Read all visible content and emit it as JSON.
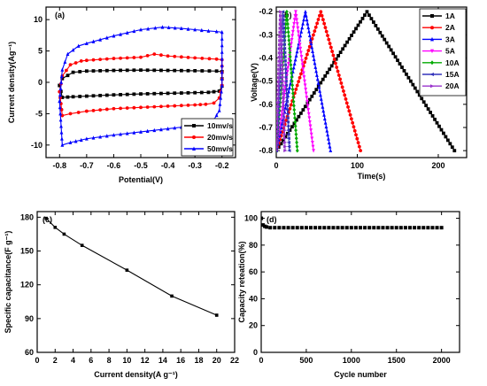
{
  "chart_data": [
    {
      "panel": "(a)",
      "type": "line",
      "xlabel": "Potential(V)",
      "ylabel": "Current density(Ag⁻¹)",
      "xlim": [
        -0.85,
        -0.15
      ],
      "ylim": [
        -12,
        12
      ],
      "xticks": [
        -0.8,
        -0.7,
        -0.6,
        -0.5,
        -0.4,
        -0.3,
        -0.2
      ],
      "xticklabels": [
        "-0.8",
        "-0.7",
        "-0.6",
        "-0.5",
        "-0.4",
        "-0.3",
        "-0.2"
      ],
      "yticks": [
        -10,
        -5,
        0,
        5,
        10
      ],
      "yticklabels": [
        "-10",
        "-5",
        "0",
        "5",
        "10"
      ],
      "legend_position": "bottom-right",
      "series": [
        {
          "name": "10mv/s",
          "color": "#000000",
          "marker": "square",
          "x": [
            -0.8,
            -0.79,
            -0.75,
            -0.7,
            -0.6,
            -0.5,
            -0.4,
            -0.3,
            -0.22,
            -0.2,
            -0.2,
            -0.21,
            -0.25,
            -0.3,
            -0.4,
            -0.5,
            -0.6,
            -0.7,
            -0.75,
            -0.79,
            -0.8
          ],
          "y": [
            -0.5,
            0.6,
            1.6,
            1.8,
            1.9,
            1.95,
            1.9,
            1.85,
            1.8,
            1.7,
            -0.6,
            -1.4,
            -1.6,
            -1.65,
            -1.75,
            -1.85,
            -2.0,
            -2.2,
            -2.3,
            -2.4,
            -0.5
          ]
        },
        {
          "name": "20mv/s",
          "color": "#ff0000",
          "marker": "circle",
          "x": [
            -0.8,
            -0.79,
            -0.76,
            -0.72,
            -0.7,
            -0.6,
            -0.5,
            -0.45,
            -0.4,
            -0.3,
            -0.22,
            -0.2,
            -0.2,
            -0.21,
            -0.23,
            -0.26,
            -0.3,
            -0.4,
            -0.5,
            -0.6,
            -0.7,
            -0.76,
            -0.79,
            -0.8
          ],
          "y": [
            -1.5,
            1.0,
            2.8,
            3.4,
            3.5,
            3.8,
            4.0,
            4.5,
            4.2,
            3.9,
            3.7,
            3.6,
            -0.5,
            -2.5,
            -3.3,
            -3.5,
            -3.6,
            -3.8,
            -4.0,
            -4.2,
            -4.6,
            -5.0,
            -5.3,
            -1.5
          ]
        },
        {
          "name": "50mv/s",
          "color": "#0000ff",
          "marker": "triangle",
          "x": [
            -0.8,
            -0.79,
            -0.77,
            -0.73,
            -0.7,
            -0.6,
            -0.5,
            -0.42,
            -0.35,
            -0.3,
            -0.25,
            -0.22,
            -0.2,
            -0.2,
            -0.21,
            -0.23,
            -0.25,
            -0.3,
            -0.4,
            -0.5,
            -0.6,
            -0.7,
            -0.76,
            -0.79,
            -0.8
          ],
          "y": [
            -3.0,
            2.0,
            4.5,
            5.8,
            6.2,
            7.4,
            8.4,
            8.8,
            8.6,
            8.4,
            8.2,
            8.1,
            8.0,
            -0.5,
            -4.5,
            -6.0,
            -6.5,
            -6.9,
            -7.4,
            -7.9,
            -8.4,
            -9.0,
            -9.6,
            -10.0,
            -3.0
          ]
        }
      ]
    },
    {
      "panel": "(b)",
      "type": "line",
      "xlabel": "Time(s)",
      "ylabel": "Voltage(V)",
      "xlim": [
        0,
        235
      ],
      "ylim": [
        -0.83,
        -0.18
      ],
      "xticks": [
        0,
        100,
        200
      ],
      "xticklabels": [
        "0",
        "100",
        "200"
      ],
      "yticks": [
        -0.8,
        -0.7,
        -0.6,
        -0.5,
        -0.4,
        -0.3,
        -0.2
      ],
      "yticklabels": [
        "-0.8",
        "-0.7",
        "-0.6",
        "-0.5",
        "-0.4",
        "-0.3",
        "-0.2"
      ],
      "legend_position": "top-right",
      "series": [
        {
          "name": "1A",
          "color": "#000000",
          "marker": "square",
          "x": [
            0,
            6,
            112,
            220
          ],
          "y": [
            -0.8,
            -0.77,
            -0.2,
            -0.8
          ]
        },
        {
          "name": "2A",
          "color": "#ff0000",
          "marker": "circle",
          "x": [
            0,
            3,
            55,
            104
          ],
          "y": [
            -0.8,
            -0.77,
            -0.2,
            -0.8
          ]
        },
        {
          "name": "3A",
          "color": "#0000ff",
          "marker": "triangle",
          "x": [
            0,
            2,
            36,
            67
          ],
          "y": [
            -0.8,
            -0.77,
            -0.2,
            -0.8
          ]
        },
        {
          "name": "5A",
          "color": "#ff00ff",
          "marker": "triangle-down",
          "x": [
            0,
            1.5,
            24,
            46
          ],
          "y": [
            -0.8,
            -0.77,
            -0.2,
            -0.8
          ]
        },
        {
          "name": "10A",
          "color": "#00aa00",
          "marker": "diamond",
          "x": [
            0,
            1,
            13,
            26
          ],
          "y": [
            -0.8,
            -0.77,
            -0.2,
            -0.8
          ]
        },
        {
          "name": "15A",
          "color": "#3333bb",
          "marker": "triangle-left",
          "x": [
            0,
            0.8,
            8,
            16
          ],
          "y": [
            -0.8,
            -0.77,
            -0.2,
            -0.8
          ]
        },
        {
          "name": "20A",
          "color": "#9933cc",
          "marker": "triangle-right",
          "x": [
            0,
            0.6,
            5.5,
            11
          ],
          "y": [
            -0.8,
            -0.77,
            -0.2,
            -0.8
          ]
        }
      ]
    },
    {
      "panel": "(c)",
      "type": "line",
      "xlabel": "Current density(A g⁻¹)",
      "ylabel": "Specific capacitance(F g⁻¹)",
      "xlim": [
        0,
        22
      ],
      "ylim": [
        60,
        185
      ],
      "xticks": [
        0,
        2,
        4,
        6,
        8,
        10,
        12,
        14,
        16,
        18,
        20,
        22
      ],
      "xticklabels": [
        "0",
        "2",
        "4",
        "6",
        "8",
        "10",
        "12",
        "14",
        "16",
        "18",
        "20",
        "22"
      ],
      "yticks": [
        60,
        90,
        120,
        150,
        180
      ],
      "yticklabels": [
        "60",
        "90",
        "120",
        "150",
        "180"
      ],
      "series": [
        {
          "color": "#000000",
          "marker": "square",
          "x": [
            1,
            2,
            3,
            5,
            10,
            15,
            20
          ],
          "y": [
            179,
            171,
            165,
            155,
            133,
            110,
            93
          ]
        }
      ]
    },
    {
      "panel": "(d)",
      "type": "scatter",
      "xlabel": "Cycle number",
      "ylabel": "Capacity reteation(%)",
      "xlim": [
        0,
        2200
      ],
      "ylim": [
        0,
        105
      ],
      "xticks": [
        0,
        500,
        1000,
        1500,
        2000
      ],
      "xticklabels": [
        "0",
        "500",
        "1000",
        "1500",
        "2000"
      ],
      "yticks": [
        0,
        20,
        40,
        60,
        80,
        100
      ],
      "yticklabels": [
        "0",
        "20",
        "40",
        "60",
        "80",
        "100"
      ],
      "series": [
        {
          "color": "#000000",
          "marker": "square",
          "x": [
            1,
            20,
            40,
            60,
            100,
            150,
            200,
            250,
            300,
            350,
            400,
            450,
            500,
            550,
            600,
            650,
            700,
            750,
            800,
            850,
            900,
            950,
            1000,
            1050,
            1100,
            1150,
            1200,
            1250,
            1300,
            1350,
            1400,
            1450,
            1500,
            1550,
            1600,
            1650,
            1700,
            1750,
            1800,
            1850,
            1900,
            1950,
            2000
          ],
          "y": [
            100,
            95,
            94,
            93.5,
            93,
            93,
            93,
            93,
            93,
            93,
            93,
            93,
            93,
            93,
            93,
            93,
            93,
            93,
            93,
            93,
            93,
            93,
            93,
            93,
            93,
            93,
            93,
            93,
            93,
            93,
            93,
            93,
            93,
            93,
            93,
            93,
            93,
            93,
            93,
            93,
            93,
            93,
            93
          ]
        }
      ]
    }
  ]
}
